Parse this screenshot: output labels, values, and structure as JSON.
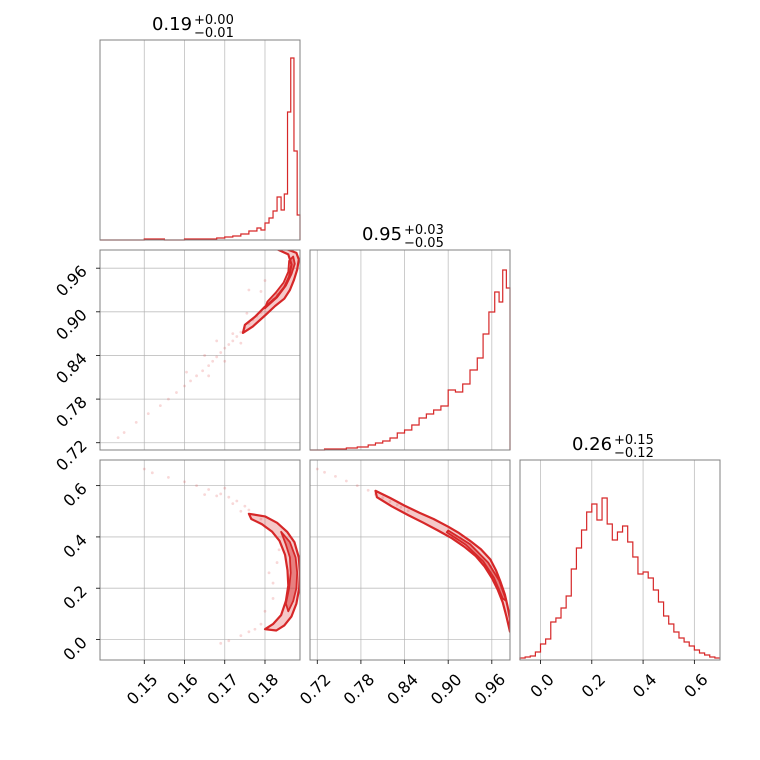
{
  "chart_data": {
    "type": "corner",
    "color": "#d62728",
    "params": [
      {
        "key": "p0",
        "range": [
          0.139,
          0.1887
        ],
        "ticks": [
          0.15,
          0.16,
          0.17,
          0.18
        ],
        "tick_labels": [
          "0.15",
          "0.16",
          "0.17",
          "0.18"
        ],
        "title": {
          "value": "0.19",
          "plus": "+0.00",
          "minus": "−0.01"
        },
        "hist_max": 182,
        "hist": [
          {
            "x": 0.139,
            "c": 0
          },
          {
            "x": 0.145,
            "c": 0
          },
          {
            "x": 0.15,
            "c": 1
          },
          {
            "x": 0.155,
            "c": 0
          },
          {
            "x": 0.16,
            "c": 1
          },
          {
            "x": 0.165,
            "c": 1
          },
          {
            "x": 0.168,
            "c": 2
          },
          {
            "x": 0.17,
            "c": 3
          },
          {
            "x": 0.172,
            "c": 4
          },
          {
            "x": 0.174,
            "c": 6
          },
          {
            "x": 0.176,
            "c": 9
          },
          {
            "x": 0.178,
            "c": 12
          },
          {
            "x": 0.179,
            "c": 10
          },
          {
            "x": 0.18,
            "c": 17
          },
          {
            "x": 0.181,
            "c": 22
          },
          {
            "x": 0.182,
            "c": 29
          },
          {
            "x": 0.183,
            "c": 43
          },
          {
            "x": 0.184,
            "c": 30
          },
          {
            "x": 0.1848,
            "c": 46
          },
          {
            "x": 0.1856,
            "c": 128
          },
          {
            "x": 0.1864,
            "c": 182
          },
          {
            "x": 0.1872,
            "c": 89
          },
          {
            "x": 0.188,
            "c": 25
          },
          {
            "x": 0.1887,
            "c": 0
          }
        ]
      },
      {
        "key": "p1",
        "range": [
          0.71,
          0.985
        ],
        "ticks": [
          0.72,
          0.78,
          0.84,
          0.9,
          0.96
        ],
        "tick_labels": [
          "0.72",
          "0.78",
          "0.84",
          "0.90",
          "0.96"
        ],
        "title": {
          "value": "0.95",
          "plus": "+0.03",
          "minus": "−0.05"
        },
        "hist_max": 182,
        "hist": [
          {
            "x": 0.71,
            "c": 0
          },
          {
            "x": 0.73,
            "c": 1
          },
          {
            "x": 0.745,
            "c": 1
          },
          {
            "x": 0.76,
            "c": 2
          },
          {
            "x": 0.775,
            "c": 3
          },
          {
            "x": 0.79,
            "c": 5
          },
          {
            "x": 0.8,
            "c": 7
          },
          {
            "x": 0.81,
            "c": 9
          },
          {
            "x": 0.82,
            "c": 12
          },
          {
            "x": 0.83,
            "c": 17
          },
          {
            "x": 0.84,
            "c": 20
          },
          {
            "x": 0.85,
            "c": 25
          },
          {
            "x": 0.86,
            "c": 32
          },
          {
            "x": 0.87,
            "c": 36
          },
          {
            "x": 0.88,
            "c": 40
          },
          {
            "x": 0.89,
            "c": 44
          },
          {
            "x": 0.9,
            "c": 60
          },
          {
            "x": 0.91,
            "c": 58
          },
          {
            "x": 0.92,
            "c": 66
          },
          {
            "x": 0.93,
            "c": 80
          },
          {
            "x": 0.94,
            "c": 92
          },
          {
            "x": 0.948,
            "c": 116
          },
          {
            "x": 0.956,
            "c": 138
          },
          {
            "x": 0.964,
            "c": 158
          },
          {
            "x": 0.97,
            "c": 148
          },
          {
            "x": 0.975,
            "c": 180
          },
          {
            "x": 0.98,
            "c": 162
          },
          {
            "x": 0.985,
            "c": 0
          }
        ]
      },
      {
        "key": "p2",
        "range": [
          -0.08,
          0.7
        ],
        "ticks": [
          0.0,
          0.2,
          0.4,
          0.6
        ],
        "tick_labels": [
          "0.0",
          "0.2",
          "0.4",
          "0.6"
        ],
        "title": {
          "value": "0.26",
          "plus": "+0.15",
          "minus": "−0.12"
        },
        "hist_max": 182,
        "hist": [
          {
            "x": -0.08,
            "c": 2
          },
          {
            "x": -0.06,
            "c": 3
          },
          {
            "x": -0.04,
            "c": 4
          },
          {
            "x": -0.02,
            "c": 8
          },
          {
            "x": 0.0,
            "c": 16
          },
          {
            "x": 0.02,
            "c": 21
          },
          {
            "x": 0.04,
            "c": 38
          },
          {
            "x": 0.06,
            "c": 42
          },
          {
            "x": 0.08,
            "c": 52
          },
          {
            "x": 0.1,
            "c": 64
          },
          {
            "x": 0.12,
            "c": 91
          },
          {
            "x": 0.14,
            "c": 112
          },
          {
            "x": 0.16,
            "c": 130
          },
          {
            "x": 0.18,
            "c": 148
          },
          {
            "x": 0.2,
            "c": 156
          },
          {
            "x": 0.22,
            "c": 140
          },
          {
            "x": 0.24,
            "c": 162
          },
          {
            "x": 0.26,
            "c": 136
          },
          {
            "x": 0.28,
            "c": 120
          },
          {
            "x": 0.3,
            "c": 128
          },
          {
            "x": 0.32,
            "c": 134
          },
          {
            "x": 0.34,
            "c": 118
          },
          {
            "x": 0.36,
            "c": 103
          },
          {
            "x": 0.38,
            "c": 86
          },
          {
            "x": 0.4,
            "c": 88
          },
          {
            "x": 0.42,
            "c": 82
          },
          {
            "x": 0.44,
            "c": 70
          },
          {
            "x": 0.46,
            "c": 58
          },
          {
            "x": 0.48,
            "c": 44
          },
          {
            "x": 0.5,
            "c": 36
          },
          {
            "x": 0.52,
            "c": 28
          },
          {
            "x": 0.54,
            "c": 22
          },
          {
            "x": 0.56,
            "c": 18
          },
          {
            "x": 0.58,
            "c": 14
          },
          {
            "x": 0.6,
            "c": 10
          },
          {
            "x": 0.62,
            "c": 7
          },
          {
            "x": 0.64,
            "c": 5
          },
          {
            "x": 0.66,
            "c": 3
          },
          {
            "x": 0.68,
            "c": 2
          }
        ]
      }
    ],
    "panels_2d": [
      {
        "x": "p0",
        "y": "p1",
        "scatter": [
          [
            0.1435,
            0.727
          ],
          [
            0.145,
            0.734
          ],
          [
            0.148,
            0.748
          ],
          [
            0.151,
            0.76
          ],
          [
            0.154,
            0.771
          ],
          [
            0.156,
            0.78
          ],
          [
            0.158,
            0.789
          ],
          [
            0.16,
            0.798
          ],
          [
            0.1615,
            0.805
          ],
          [
            0.163,
            0.812
          ],
          [
            0.1645,
            0.819
          ],
          [
            0.166,
            0.826
          ],
          [
            0.167,
            0.832
          ],
          [
            0.168,
            0.838
          ],
          [
            0.169,
            0.844
          ],
          [
            0.17,
            0.85
          ],
          [
            0.171,
            0.855
          ],
          [
            0.172,
            0.86
          ],
          [
            0.173,
            0.866
          ],
          [
            0.174,
            0.872
          ],
          [
            0.175,
            0.878
          ],
          [
            0.176,
            0.884
          ],
          [
            0.177,
            0.889
          ],
          [
            0.178,
            0.894
          ],
          [
            0.179,
            0.899
          ],
          [
            0.18,
            0.905
          ],
          [
            0.181,
            0.911
          ],
          [
            0.182,
            0.917
          ],
          [
            0.183,
            0.924
          ],
          [
            0.176,
            0.93
          ],
          [
            0.165,
            0.84
          ],
          [
            0.168,
            0.86
          ],
          [
            0.172,
            0.87
          ],
          [
            0.17,
            0.832
          ],
          [
            0.166,
            0.812
          ],
          [
            0.174,
            0.857
          ],
          [
            0.1605,
            0.817
          ],
          [
            0.1755,
            0.898
          ],
          [
            0.179,
            0.928
          ],
          [
            0.18,
            0.943
          ]
        ],
        "contour_outer": [
          [
            0.1745,
            0.871
          ],
          [
            0.177,
            0.88
          ],
          [
            0.18,
            0.895
          ],
          [
            0.1825,
            0.908
          ],
          [
            0.1848,
            0.918
          ],
          [
            0.1862,
            0.93
          ],
          [
            0.1872,
            0.944
          ],
          [
            0.188,
            0.958
          ],
          [
            0.1884,
            0.972
          ],
          [
            0.1878,
            0.981
          ],
          [
            0.1855,
            0.986
          ],
          [
            0.183,
            0.986
          ],
          [
            0.1858,
            0.979
          ],
          [
            0.1866,
            0.965
          ],
          [
            0.186,
            0.948
          ],
          [
            0.1848,
            0.934
          ],
          [
            0.1828,
            0.92
          ],
          [
            0.18,
            0.907
          ],
          [
            0.1775,
            0.893
          ],
          [
            0.175,
            0.882
          ]
        ],
        "contour_inner": [
          [
            0.18,
            0.905
          ],
          [
            0.183,
            0.92
          ],
          [
            0.1852,
            0.936
          ],
          [
            0.1866,
            0.952
          ],
          [
            0.1874,
            0.966
          ],
          [
            0.187,
            0.976
          ],
          [
            0.186,
            0.97
          ],
          [
            0.1858,
            0.955
          ],
          [
            0.1846,
            0.94
          ],
          [
            0.1826,
            0.926
          ],
          [
            0.1806,
            0.914
          ]
        ]
      },
      {
        "x": "p0",
        "y": "p2",
        "scatter": [
          [
            0.15,
            0.665
          ],
          [
            0.152,
            0.65
          ],
          [
            0.156,
            0.632
          ],
          [
            0.16,
            0.615
          ],
          [
            0.163,
            0.6
          ],
          [
            0.166,
            0.585
          ],
          [
            0.169,
            0.568
          ],
          [
            0.171,
            0.555
          ],
          [
            0.173,
            0.54
          ],
          [
            0.175,
            0.52
          ],
          [
            0.176,
            0.505
          ],
          [
            0.17,
            0.59
          ],
          [
            0.168,
            0.56
          ],
          [
            0.172,
            0.53
          ],
          [
            0.174,
            0.5
          ],
          [
            0.181,
            0.26
          ],
          [
            0.182,
            0.22
          ],
          [
            0.183,
            0.3
          ],
          [
            0.176,
            0.03
          ],
          [
            0.174,
            0.015
          ],
          [
            0.171,
            -0.005
          ],
          [
            0.169,
            -0.015
          ],
          [
            0.1775,
            0.04
          ],
          [
            0.179,
            0.06
          ],
          [
            0.18,
            0.11
          ],
          [
            0.182,
            0.16
          ],
          [
            0.1835,
            0.35
          ],
          [
            0.165,
            0.565
          ],
          [
            0.179,
            0.47
          ],
          [
            0.18,
            0.44
          ]
        ],
        "contour_outer": [
          [
            0.176,
            0.49
          ],
          [
            0.18,
            0.48
          ],
          [
            0.183,
            0.455
          ],
          [
            0.1855,
            0.42
          ],
          [
            0.1873,
            0.38
          ],
          [
            0.1884,
            0.32
          ],
          [
            0.1887,
            0.26
          ],
          [
            0.1885,
            0.2
          ],
          [
            0.1878,
            0.14
          ],
          [
            0.1866,
            0.09
          ],
          [
            0.1848,
            0.055
          ],
          [
            0.1828,
            0.035
          ],
          [
            0.18,
            0.04
          ],
          [
            0.182,
            0.06
          ],
          [
            0.184,
            0.095
          ],
          [
            0.1852,
            0.15
          ],
          [
            0.1858,
            0.21
          ],
          [
            0.1856,
            0.27
          ],
          [
            0.185,
            0.33
          ],
          [
            0.1836,
            0.385
          ],
          [
            0.1818,
            0.42
          ],
          [
            0.1792,
            0.45
          ],
          [
            0.1766,
            0.47
          ]
        ],
        "contour_inner": [
          [
            0.184,
            0.42
          ],
          [
            0.1862,
            0.38
          ],
          [
            0.1876,
            0.32
          ],
          [
            0.188,
            0.26
          ],
          [
            0.1878,
            0.2
          ],
          [
            0.187,
            0.15
          ],
          [
            0.1858,
            0.11
          ],
          [
            0.1852,
            0.14
          ],
          [
            0.186,
            0.2
          ],
          [
            0.1864,
            0.26
          ],
          [
            0.1862,
            0.32
          ],
          [
            0.1852,
            0.37
          ]
        ]
      },
      {
        "x": "p1",
        "y": "p2",
        "scatter": [
          [
            0.72,
            0.665
          ],
          [
            0.73,
            0.652
          ],
          [
            0.745,
            0.636
          ],
          [
            0.76,
            0.618
          ],
          [
            0.775,
            0.6
          ],
          [
            0.79,
            0.582
          ],
          [
            0.8,
            0.566
          ],
          [
            0.81,
            0.553
          ],
          [
            0.82,
            0.538
          ],
          [
            0.83,
            0.525
          ],
          [
            0.835,
            0.516
          ],
          [
            0.845,
            0.502
          ]
        ],
        "contour_outer": [
          [
            0.8,
            0.58
          ],
          [
            0.82,
            0.552
          ],
          [
            0.84,
            0.522
          ],
          [
            0.86,
            0.495
          ],
          [
            0.88,
            0.47
          ],
          [
            0.9,
            0.44
          ],
          [
            0.915,
            0.415
          ],
          [
            0.93,
            0.385
          ],
          [
            0.945,
            0.352
          ],
          [
            0.958,
            0.312
          ],
          [
            0.966,
            0.268
          ],
          [
            0.972,
            0.225
          ],
          [
            0.978,
            0.175
          ],
          [
            0.982,
            0.125
          ],
          [
            0.985,
            0.08
          ],
          [
            0.985,
            0.03
          ],
          [
            0.98,
            0.09
          ],
          [
            0.975,
            0.145
          ],
          [
            0.968,
            0.195
          ],
          [
            0.96,
            0.24
          ],
          [
            0.95,
            0.285
          ],
          [
            0.938,
            0.325
          ],
          [
            0.922,
            0.362
          ],
          [
            0.905,
            0.395
          ],
          [
            0.886,
            0.425
          ],
          [
            0.866,
            0.455
          ],
          [
            0.845,
            0.485
          ],
          [
            0.822,
            0.52
          ],
          [
            0.802,
            0.555
          ]
        ],
        "contour_inner": [
          [
            0.9,
            0.425
          ],
          [
            0.93,
            0.372
          ],
          [
            0.955,
            0.3
          ],
          [
            0.97,
            0.23
          ],
          [
            0.98,
            0.15
          ],
          [
            0.975,
            0.16
          ],
          [
            0.963,
            0.24
          ],
          [
            0.948,
            0.305
          ],
          [
            0.924,
            0.37
          ],
          [
            0.898,
            0.418
          ]
        ]
      }
    ]
  }
}
